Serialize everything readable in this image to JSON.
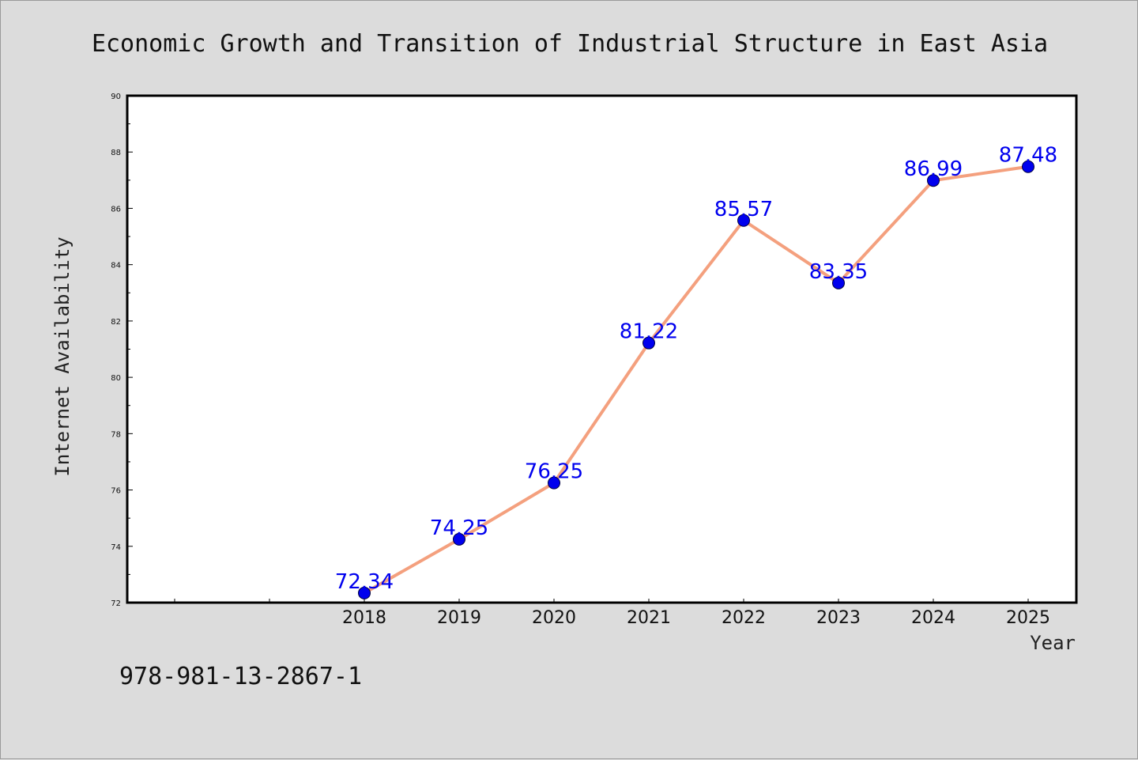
{
  "chart_data": {
    "type": "line",
    "title": "Economic Growth and Transition of Industrial Structure in East Asia",
    "xlabel": "Year",
    "ylabel": "Internet Availability",
    "categories": [
      "2018",
      "2019",
      "2020",
      "2021",
      "2022",
      "2023",
      "2024",
      "2025"
    ],
    "series": [
      {
        "values": [
          72.34,
          74.25,
          76.25,
          81.22,
          85.57,
          83.35,
          86.99,
          87.48
        ]
      }
    ],
    "data_labels": [
      "72.34",
      "74.25",
      "76.25",
      "81.22",
      "85.57",
      "83.35",
      "86.99",
      "87.48"
    ],
    "ylim": [
      72,
      90
    ],
    "yticks": [
      "72",
      "74",
      "76",
      "78",
      "80",
      "82",
      "84",
      "86",
      "88",
      "90"
    ],
    "grid": false,
    "legend": "none",
    "colors": {
      "line": "#f4a07e",
      "marker": "#0000ee",
      "label": "#0000ee",
      "background": "#dcdcdc",
      "plot_background": "#ffffff"
    }
  },
  "footer": {
    "isbn": "978-981-13-2867-1"
  }
}
